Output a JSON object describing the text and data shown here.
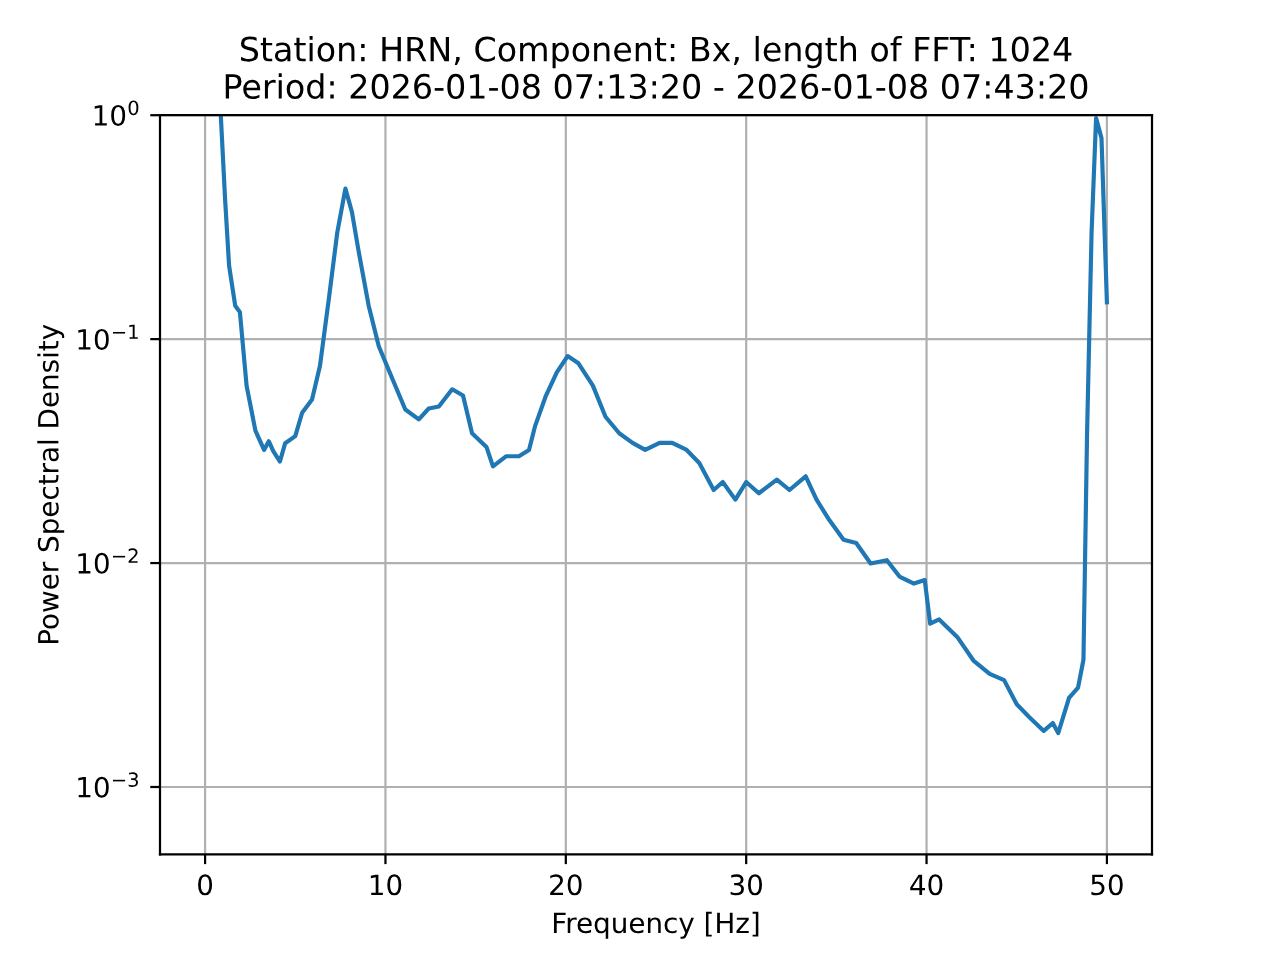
{
  "chart_data": {
    "type": "line",
    "title": "Station: HRN, Component: Bx, length of FFT: 1024\nPeriod: 2026-01-08 07:13:20 - 2026-01-08 07:43:20",
    "xlabel": "Frequency [Hz]",
    "ylabel": "Power Spectral Density",
    "x": [
      0.87,
      1.11,
      1.33,
      1.67,
      1.93,
      2.3,
      2.79,
      3.27,
      3.53,
      3.78,
      4.15,
      4.44,
      5.0,
      5.38,
      5.93,
      6.37,
      6.86,
      7.33,
      7.78,
      8.14,
      8.52,
      9.07,
      9.63,
      10.4,
      11.1,
      11.85,
      12.4,
      12.96,
      13.7,
      14.3,
      14.8,
      15.6,
      15.96,
      16.7,
      17.4,
      17.96,
      18.3,
      18.9,
      19.5,
      20.1,
      20.7,
      21.5,
      22.2,
      22.96,
      23.7,
      24.4,
      25.2,
      25.9,
      26.7,
      27.4,
      28.2,
      28.7,
      29.4,
      30.0,
      30.7,
      31.7,
      32.4,
      33.3,
      33.9,
      34.6,
      35.4,
      36.1,
      36.9,
      37.8,
      38.5,
      39.3,
      39.9,
      40.2,
      40.7,
      41.7,
      42.6,
      43.5,
      44.3,
      45.0,
      45.7,
      46.5,
      47.0,
      47.3,
      47.9,
      48.4,
      48.7,
      48.9,
      49.15,
      49.4,
      49.7,
      50.0
    ],
    "series": [
      {
        "color": "#1f77b4",
        "values": [
          1.0,
          0.42,
          0.213,
          0.141,
          0.132,
          0.062,
          0.039,
          0.032,
          0.035,
          0.0316,
          0.0284,
          0.0343,
          0.0369,
          0.0469,
          0.0538,
          0.076,
          0.151,
          0.3,
          0.47,
          0.37,
          0.245,
          0.141,
          0.093,
          0.066,
          0.0485,
          0.0438,
          0.049,
          0.05,
          0.0597,
          0.056,
          0.038,
          0.033,
          0.027,
          0.03,
          0.03,
          0.032,
          0.041,
          0.056,
          0.071,
          0.084,
          0.078,
          0.062,
          0.045,
          0.038,
          0.0344,
          0.032,
          0.0344,
          0.0344,
          0.032,
          0.028,
          0.0212,
          0.023,
          0.0192,
          0.023,
          0.0205,
          0.0236,
          0.0212,
          0.0244,
          0.0192,
          0.0156,
          0.0127,
          0.0123,
          0.00996,
          0.0103,
          0.0087,
          0.0081,
          0.0084,
          0.00536,
          0.0056,
          0.00468,
          0.00367,
          0.0032,
          0.003,
          0.00234,
          0.00205,
          0.00178,
          0.00193,
          0.00174,
          0.0025,
          0.00278,
          0.0037,
          0.038,
          0.3,
          0.97,
          0.79,
          0.146
        ]
      }
    ],
    "xlim": [
      -2.5,
      52.5
    ],
    "xticks": [
      0,
      10,
      20,
      30,
      40,
      50
    ],
    "ylim": [
      0.0005,
      1
    ],
    "yticks": [
      {
        "value": 0.001,
        "label": "10$^{−3}$"
      },
      {
        "value": 0.01,
        "label": "10$^{−2}$"
      },
      {
        "value": 0.1,
        "label": "10$^{−1}$"
      },
      {
        "value": 1,
        "label": "10$^{0}$"
      }
    ],
    "log": "y",
    "grid": true,
    "marker": "none",
    "line_style": "solid"
  }
}
